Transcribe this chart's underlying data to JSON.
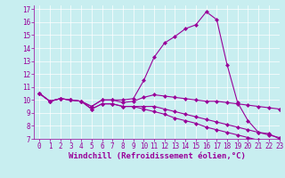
{
  "title": "",
  "xlabel": "Windchill (Refroidissement éolien,°C)",
  "background_color": "#c8eef0",
  "line_color": "#990099",
  "grid_color": "#ffffff",
  "xlim": [
    -0.5,
    23
  ],
  "ylim": [
    7,
    17.3
  ],
  "yticks": [
    7,
    8,
    9,
    10,
    11,
    12,
    13,
    14,
    15,
    16,
    17
  ],
  "xticks": [
    0,
    1,
    2,
    3,
    4,
    5,
    6,
    7,
    8,
    9,
    10,
    11,
    12,
    13,
    14,
    15,
    16,
    17,
    18,
    19,
    20,
    21,
    22,
    23
  ],
  "line1_x": [
    0,
    1,
    2,
    3,
    4,
    5,
    6,
    7,
    8,
    9,
    10,
    11,
    12,
    13,
    14,
    15,
    16,
    17,
    18,
    19,
    20,
    21,
    22,
    23
  ],
  "line1_y": [
    10.5,
    9.9,
    10.1,
    10.0,
    9.9,
    9.5,
    10.0,
    10.0,
    10.0,
    10.1,
    11.5,
    13.3,
    14.4,
    14.9,
    15.5,
    15.8,
    16.8,
    16.2,
    12.7,
    9.8,
    8.4,
    7.5,
    7.4,
    7.0
  ],
  "line2_x": [
    0,
    1,
    2,
    3,
    4,
    5,
    6,
    7,
    8,
    9,
    10,
    11,
    12,
    13,
    14,
    15,
    16,
    17,
    18,
    19,
    20,
    21,
    22,
    23
  ],
  "line2_y": [
    10.5,
    9.9,
    10.1,
    10.0,
    9.9,
    9.5,
    10.0,
    10.0,
    9.8,
    9.9,
    10.2,
    10.4,
    10.3,
    10.2,
    10.1,
    10.0,
    9.9,
    9.9,
    9.8,
    9.7,
    9.6,
    9.5,
    9.4,
    9.3
  ],
  "line3_x": [
    0,
    1,
    2,
    3,
    4,
    5,
    6,
    7,
    8,
    9,
    10,
    11,
    12,
    13,
    14,
    15,
    16,
    17,
    18,
    19,
    20,
    21,
    22,
    23
  ],
  "line3_y": [
    10.5,
    9.9,
    10.1,
    10.0,
    9.9,
    9.3,
    9.7,
    9.7,
    9.5,
    9.5,
    9.5,
    9.5,
    9.3,
    9.1,
    8.9,
    8.7,
    8.5,
    8.3,
    8.1,
    7.9,
    7.7,
    7.5,
    7.3,
    7.1
  ],
  "line4_x": [
    0,
    1,
    2,
    3,
    4,
    5,
    6,
    7,
    8,
    9,
    10,
    11,
    12,
    13,
    14,
    15,
    16,
    17,
    18,
    19,
    20,
    21,
    22,
    23
  ],
  "line4_y": [
    10.5,
    9.9,
    10.1,
    10.0,
    9.9,
    9.3,
    9.7,
    9.7,
    9.5,
    9.5,
    9.3,
    9.1,
    8.9,
    8.6,
    8.4,
    8.2,
    7.9,
    7.7,
    7.5,
    7.3,
    7.1,
    6.9,
    6.7,
    6.5
  ],
  "marker": "D",
  "markersize": 2.0,
  "linewidth": 0.8,
  "xlabel_fontsize": 6.5,
  "tick_fontsize": 5.5,
  "tick_color": "#990099",
  "label_color": "#990099"
}
